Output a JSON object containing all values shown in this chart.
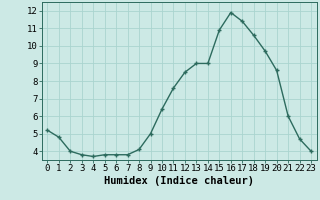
{
  "x": [
    0,
    1,
    2,
    3,
    4,
    5,
    6,
    7,
    8,
    9,
    10,
    11,
    12,
    13,
    14,
    15,
    16,
    17,
    18,
    19,
    20,
    21,
    22,
    23
  ],
  "y": [
    5.2,
    4.8,
    4.0,
    3.8,
    3.7,
    3.8,
    3.8,
    3.8,
    4.1,
    5.0,
    6.4,
    7.6,
    8.5,
    9.0,
    9.0,
    10.9,
    11.9,
    11.4,
    10.6,
    9.7,
    8.6,
    6.0,
    4.7,
    4.0
  ],
  "xlabel": "Humidex (Indice chaleur)",
  "xlim": [
    -0.5,
    23.5
  ],
  "ylim": [
    3.5,
    12.5
  ],
  "yticks": [
    4,
    5,
    6,
    7,
    8,
    9,
    10,
    11,
    12
  ],
  "xticks": [
    0,
    1,
    2,
    3,
    4,
    5,
    6,
    7,
    8,
    9,
    10,
    11,
    12,
    13,
    14,
    15,
    16,
    17,
    18,
    19,
    20,
    21,
    22,
    23
  ],
  "line_color": "#2d6b5e",
  "marker": "+",
  "bg_color": "#cce9e5",
  "grid_color": "#aad4cf",
  "label_fontsize": 7.5,
  "tick_fontsize": 6.5
}
